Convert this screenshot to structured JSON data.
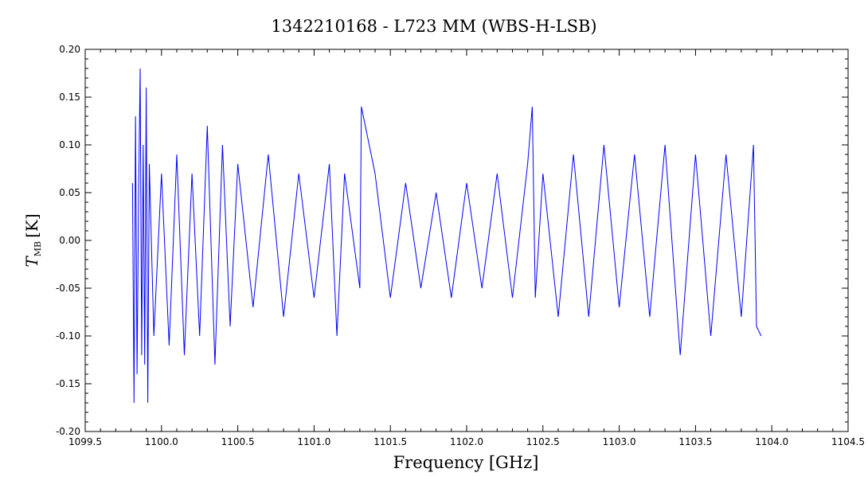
{
  "chart_data": {
    "type": "line",
    "title": "1342210168 - L723 MM (WBS-H-LSB)",
    "xlabel": "Frequency [GHz]",
    "ylabel_main": "T",
    "ylabel_sub": "MB",
    "ylabel_unit": "[K]",
    "xlim": [
      1099.5,
      1104.5
    ],
    "ylim": [
      -0.2,
      0.2
    ],
    "x_ticks": [
      "1099.5",
      "1100.0",
      "1100.5",
      "1101.0",
      "1101.5",
      "1102.0",
      "1102.5",
      "1103.0",
      "1103.5",
      "1104.0",
      "1104.5"
    ],
    "y_ticks": [
      "0.20",
      "0.15",
      "0.10",
      "0.05",
      "0.00",
      "-0.05",
      "-0.10",
      "-0.15",
      "-0.20"
    ],
    "grid": false,
    "series": [
      {
        "color": "#0000ff",
        "x": [
          1099.81,
          1099.82,
          1099.83,
          1099.84,
          1099.85,
          1099.86,
          1099.87,
          1099.88,
          1099.89,
          1099.9,
          1099.91,
          1099.92,
          1099.95,
          1100.0,
          1100.05,
          1100.1,
          1100.15,
          1100.2,
          1100.25,
          1100.3,
          1100.35,
          1100.4,
          1100.45,
          1100.5,
          1100.6,
          1100.7,
          1100.8,
          1100.9,
          1101.0,
          1101.1,
          1101.15,
          1101.2,
          1101.3,
          1101.31,
          1101.4,
          1101.5,
          1101.6,
          1101.7,
          1101.8,
          1101.9,
          1102.0,
          1102.1,
          1102.2,
          1102.3,
          1102.4,
          1102.43,
          1102.45,
          1102.5,
          1102.6,
          1102.7,
          1102.8,
          1102.9,
          1103.0,
          1103.1,
          1103.2,
          1103.3,
          1103.4,
          1103.5,
          1103.6,
          1103.7,
          1103.8,
          1103.88,
          1103.9,
          1103.93
        ],
        "y": [
          0.06,
          -0.17,
          0.13,
          -0.14,
          0.05,
          0.18,
          -0.12,
          0.1,
          -0.13,
          0.16,
          -0.17,
          0.08,
          -0.1,
          0.07,
          -0.11,
          0.09,
          -0.12,
          0.07,
          -0.1,
          0.12,
          -0.13,
          0.1,
          -0.09,
          0.08,
          -0.07,
          0.09,
          -0.08,
          0.07,
          -0.06,
          0.08,
          -0.1,
          0.07,
          -0.05,
          0.14,
          0.07,
          -0.06,
          0.06,
          -0.05,
          0.05,
          -0.06,
          0.06,
          -0.05,
          0.07,
          -0.06,
          0.08,
          0.14,
          -0.06,
          0.07,
          -0.08,
          0.09,
          -0.08,
          0.1,
          -0.07,
          0.09,
          -0.08,
          0.1,
          -0.12,
          0.09,
          -0.1,
          0.09,
          -0.08,
          0.1,
          -0.09,
          -0.1
        ]
      }
    ]
  }
}
